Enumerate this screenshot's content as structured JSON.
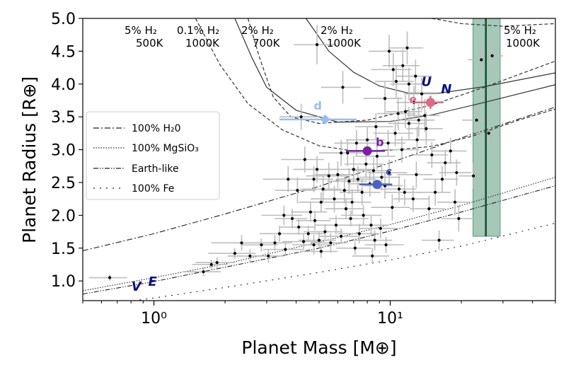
{
  "chart_data": {
    "type": "scatter",
    "xscale": "log",
    "xlim": [
      0.5,
      50
    ],
    "ylim": [
      0.7,
      5.0
    ],
    "xlabel": "Planet Mass [M⊕]",
    "ylabel": "Planet Radius [R⊕]",
    "x_ticks": [
      {
        "v": 1,
        "label": "10⁰"
      },
      {
        "v": 10,
        "label": "10¹"
      }
    ],
    "y_ticks": [
      1.0,
      1.5,
      2.0,
      2.5,
      3.0,
      3.5,
      4.0,
      4.5,
      5.0
    ],
    "y_tick_labels": [
      "1.0",
      "1.5",
      "2.0",
      "2.5",
      "3.0",
      "3.5",
      "4.0",
      "4.5",
      "5.0"
    ],
    "grid": false,
    "legend_position": "center-left",
    "legend": [
      {
        "label": "100% H₂0",
        "dash": "8 3 2 3"
      },
      {
        "label": "100% MgSiO₃",
        "dash": "1.5 2"
      },
      {
        "label": "Earth-like",
        "dash": "7 2 1.5 2 1.5 2"
      },
      {
        "label": "100% Fe",
        "dash": "2 7"
      }
    ],
    "composition_curves": [
      {
        "name": "100% H20",
        "dash": "8 3 2 3",
        "points": [
          [
            0.5,
            1.46
          ],
          [
            1,
            1.72
          ],
          [
            2,
            2.02
          ],
          [
            5,
            2.44
          ],
          [
            10,
            2.8
          ],
          [
            20,
            3.18
          ],
          [
            50,
            3.65
          ]
        ]
      },
      {
        "name": "100% MgSiO3",
        "dash": "1.5 2",
        "points": [
          [
            0.5,
            0.85
          ],
          [
            1,
            1.05
          ],
          [
            2,
            1.26
          ],
          [
            5,
            1.59
          ],
          [
            10,
            1.86
          ],
          [
            20,
            2.15
          ],
          [
            50,
            2.58
          ]
        ]
      },
      {
        "name": "Earth-like",
        "dash": "7 2 1.5 2 1.5 2",
        "points": [
          [
            0.5,
            0.8
          ],
          [
            1,
            0.99
          ],
          [
            2,
            1.21
          ],
          [
            5,
            1.5
          ],
          [
            10,
            1.76
          ],
          [
            20,
            2.05
          ],
          [
            50,
            2.45
          ]
        ]
      },
      {
        "name": "100% Fe",
        "dash": "2 7",
        "points": [
          [
            0.5,
            0.6
          ],
          [
            1,
            0.74
          ],
          [
            2,
            0.9
          ],
          [
            5,
            1.13
          ],
          [
            10,
            1.32
          ],
          [
            20,
            1.53
          ],
          [
            50,
            1.88
          ]
        ]
      }
    ],
    "envelope_curves": [
      {
        "name": "5% H2 500K",
        "dash": "5 3",
        "points": [
          [
            1.5,
            5.0
          ],
          [
            1.9,
            4.3
          ],
          [
            2.5,
            3.7
          ],
          [
            3.5,
            3.3
          ],
          [
            5,
            3.06
          ],
          [
            7,
            2.98
          ],
          [
            10,
            2.99
          ],
          [
            15,
            3.05
          ],
          [
            22,
            3.2
          ],
          [
            35,
            3.45
          ],
          [
            50,
            3.62
          ]
        ]
      },
      {
        "name": "0.1% H2 1000K",
        "dash": "5 3",
        "points": [
          [
            2.5,
            5.0
          ],
          [
            2.8,
            4.4
          ],
          [
            3.2,
            3.8
          ],
          [
            3.8,
            3.5
          ],
          [
            5,
            3.4
          ],
          [
            8,
            3.45
          ],
          [
            15,
            3.68
          ],
          [
            25,
            3.95
          ],
          [
            50,
            4.35
          ]
        ]
      },
      {
        "name": "2% H2 700K",
        "dash": "",
        "points": [
          [
            2.2,
            5.0
          ],
          [
            2.6,
            4.4
          ],
          [
            3.0,
            3.95
          ],
          [
            4.0,
            3.6
          ],
          [
            6,
            3.42
          ],
          [
            10,
            3.43
          ],
          [
            15,
            3.53
          ],
          [
            25,
            3.72
          ],
          [
            50,
            3.99
          ]
        ]
      },
      {
        "name": "2% H2 1000K",
        "dash": "",
        "points": [
          [
            4.4,
            5.0
          ],
          [
            5.5,
            4.5
          ],
          [
            7,
            4.18
          ],
          [
            9,
            3.97
          ],
          [
            12,
            3.86
          ],
          [
            16,
            3.86
          ],
          [
            25,
            3.96
          ],
          [
            50,
            4.17
          ]
        ]
      },
      {
        "name": "5% H2 1000K",
        "dash": "5 3",
        "points": [
          [
            15,
            5.0
          ],
          [
            20,
            4.92
          ],
          [
            30,
            4.88
          ],
          [
            50,
            4.92
          ]
        ]
      }
    ],
    "envelope_annotations": [
      {
        "line1": "5% H₂",
        "line2": "500K"
      },
      {
        "line1": "0.1% H₂",
        "line2": "1000K"
      },
      {
        "line1": "2% H₂",
        "line2": "700K"
      },
      {
        "line1": "2% H₂",
        "line2": "1000K"
      },
      {
        "line1": "5% H₂",
        "line2": "1000K"
      }
    ],
    "shaded_band": {
      "x_center": 25.4,
      "x_min": 22.4,
      "x_max": 29.2,
      "y_min": 1.68,
      "y_max": 5.0,
      "color": "#5b9a7e",
      "line_color": "#124d2c"
    },
    "highlighted_planets": [
      {
        "label": "b",
        "mass": 8.0,
        "mass_err": 1.5,
        "radius": 2.98,
        "radius_err": 0.05,
        "color": "#7b1fa2"
      },
      {
        "label": "c",
        "mass": 8.8,
        "mass_err": 1.4,
        "radius": 2.47,
        "radius_err": 0.05,
        "color": "#4a62c8"
      },
      {
        "label": "d",
        "mass": 5.3,
        "mass_err": 1.9,
        "radius": 3.46,
        "radius_err": 0.06,
        "color": "#9bbbef"
      },
      {
        "label": "e",
        "mass": 14.8,
        "mass_err": 2.0,
        "radius": 3.72,
        "radius_err": 0.1,
        "color": "#d96b8a"
      }
    ],
    "solar_system": [
      {
        "label": "V",
        "mass": 0.82,
        "radius": 0.95
      },
      {
        "label": "E",
        "mass": 1.0,
        "radius": 1.0
      },
      {
        "label": "U",
        "mass": 14.5,
        "radius": 3.97
      },
      {
        "label": "N",
        "mass": 17.1,
        "radius": 3.86
      }
    ],
    "exoplanets": [
      [
        0.65,
        1.05,
        0.12,
        0.05
      ],
      [
        1.75,
        1.25,
        0.3,
        0.07
      ],
      [
        1.62,
        1.14,
        0.3,
        0.07
      ],
      [
        1.85,
        1.28,
        0.35,
        0.08
      ],
      [
        2.2,
        1.42,
        0.5,
        0.08
      ],
      [
        2.55,
        1.38,
        0.5,
        0.1
      ],
      [
        2.35,
        1.58,
        0.6,
        0.12
      ],
      [
        2.85,
        1.55,
        0.5,
        0.1
      ],
      [
        3.05,
        1.38,
        0.5,
        0.1
      ],
      [
        3.25,
        1.58,
        0.6,
        0.12
      ],
      [
        3.4,
        1.72,
        0.6,
        0.12
      ],
      [
        3.6,
        1.48,
        0.7,
        0.1
      ],
      [
        3.85,
        1.95,
        0.6,
        0.15
      ],
      [
        3.55,
        2.0,
        0.7,
        0.15
      ],
      [
        4.1,
        1.82,
        0.7,
        0.12
      ],
      [
        4.3,
        1.6,
        0.8,
        0.12
      ],
      [
        4.5,
        1.72,
        0.8,
        0.12
      ],
      [
        4.6,
        2.05,
        0.8,
        0.15
      ],
      [
        4.75,
        1.55,
        0.9,
        0.15
      ],
      [
        4.8,
        1.92,
        0.8,
        0.15
      ],
      [
        5.0,
        1.62,
        0.9,
        0.12
      ],
      [
        5.1,
        2.2,
        1.0,
        0.15
      ],
      [
        5.3,
        1.75,
        1.0,
        0.12
      ],
      [
        5.6,
        1.58,
        1.0,
        0.15
      ],
      [
        5.9,
        1.85,
        1.1,
        0.15
      ],
      [
        6.2,
        1.68,
        1.2,
        0.12
      ],
      [
        6.5,
        2.1,
        1.2,
        0.15
      ],
      [
        6.8,
        1.95,
        1.3,
        0.12
      ],
      [
        7.1,
        1.5,
        1.2,
        0.1
      ],
      [
        7.4,
        1.72,
        1.4,
        0.15
      ],
      [
        7.7,
        2.0,
        1.5,
        0.15
      ],
      [
        8.3,
        1.85,
        1.6,
        0.15
      ],
      [
        8.6,
        1.62,
        1.6,
        0.15
      ],
      [
        9.1,
        1.8,
        1.7,
        0.15
      ],
      [
        9.6,
        1.55,
        1.8,
        0.12
      ],
      [
        3.7,
        2.55,
        0.8,
        0.2
      ],
      [
        4.05,
        2.38,
        0.8,
        0.2
      ],
      [
        4.35,
        2.85,
        0.9,
        0.2
      ],
      [
        4.75,
        2.55,
        1.0,
        0.2
      ],
      [
        4.9,
        2.7,
        1.0,
        0.2
      ],
      [
        5.2,
        2.4,
        1.0,
        0.2
      ],
      [
        5.5,
        2.6,
        1.1,
        0.2
      ],
      [
        5.8,
        2.25,
        1.2,
        0.2
      ],
      [
        6.0,
        2.62,
        1.2,
        0.2
      ],
      [
        6.2,
        2.95,
        1.2,
        0.2
      ],
      [
        6.4,
        2.38,
        1.3,
        0.2
      ],
      [
        6.7,
        2.52,
        1.3,
        0.2
      ],
      [
        6.9,
        2.2,
        1.4,
        0.2
      ],
      [
        7.0,
        2.7,
        1.4,
        0.2
      ],
      [
        7.3,
        2.55,
        1.4,
        0.2
      ],
      [
        7.6,
        2.35,
        1.5,
        0.2
      ],
      [
        7.9,
        2.78,
        1.5,
        0.2
      ],
      [
        8.2,
        2.48,
        1.6,
        0.2
      ],
      [
        8.5,
        2.68,
        1.6,
        0.2
      ],
      [
        8.8,
        2.9,
        1.7,
        0.2
      ],
      [
        9.2,
        2.58,
        1.8,
        0.2
      ],
      [
        9.5,
        2.45,
        1.8,
        0.2
      ],
      [
        9.9,
        2.65,
        1.9,
        0.2
      ],
      [
        6.6,
        2.95,
        1.3,
        0.2
      ],
      [
        7.2,
        3.1,
        1.4,
        0.2
      ],
      [
        8.0,
        3.15,
        1.5,
        0.2
      ],
      [
        8.7,
        3.35,
        1.6,
        0.2
      ],
      [
        9.8,
        3.1,
        1.8,
        0.2
      ],
      [
        10.5,
        3.25,
        2.0,
        0.2
      ],
      [
        11.2,
        3.0,
        2.0,
        0.2
      ],
      [
        12.0,
        3.4,
        2.2,
        0.25
      ],
      [
        13.0,
        3.15,
        2.5,
        0.2
      ],
      [
        14.2,
        3.32,
        2.5,
        0.25
      ],
      [
        15.0,
        2.92,
        2.5,
        0.2
      ],
      [
        10.8,
        3.55,
        2.0,
        0.25
      ],
      [
        11.6,
        3.58,
        2.0,
        0.25
      ],
      [
        12.6,
        3.72,
        2.0,
        0.25
      ],
      [
        13.2,
        3.45,
        2.2,
        0.25
      ],
      [
        14.0,
        3.52,
        2.2,
        0.25
      ],
      [
        9.5,
        3.78,
        1.8,
        0.25
      ],
      [
        10.6,
        4.04,
        2.0,
        0.25
      ],
      [
        11.3,
        4.28,
        2.0,
        0.25
      ],
      [
        12.0,
        4.0,
        2.0,
        0.25
      ],
      [
        12.8,
        4.12,
        2.2,
        0.25
      ],
      [
        13.6,
        3.85,
        2.2,
        0.25
      ],
      [
        11.8,
        4.55,
        2.0,
        0.25
      ],
      [
        10.3,
        4.22,
        2.0,
        0.25
      ],
      [
        9.9,
        4.5,
        1.8,
        0.25
      ],
      [
        4.2,
        3.5,
        0.8,
        0.2
      ],
      [
        4.9,
        4.6,
        1.0,
        0.3
      ],
      [
        6.3,
        3.95,
        1.2,
        0.25
      ],
      [
        18.0,
        2.98,
        3.0,
        0.2
      ],
      [
        18.8,
        2.2,
        3.0,
        0.2
      ],
      [
        19.5,
        1.95,
        3.0,
        0.2
      ],
      [
        15.5,
        2.35,
        2.5,
        0.2
      ],
      [
        16.1,
        1.62,
        2.5,
        0.15
      ],
      [
        8.4,
        1.38,
        1.5,
        0.12
      ],
      [
        5.1,
        1.45,
        0.9,
        0.1
      ],
      [
        10.2,
        2.12,
        1.9,
        0.2
      ],
      [
        10.9,
        2.4,
        2.0,
        0.2
      ],
      [
        11.5,
        2.35,
        2.0,
        0.2
      ],
      [
        12.5,
        2.25,
        2.2,
        0.2
      ],
      [
        12.9,
        2.62,
        2.2,
        0.2
      ],
      [
        14.6,
        2.1,
        2.5,
        0.2
      ],
      [
        16.6,
        2.55,
        2.8,
        0.2
      ],
      [
        17.1,
        2.8,
        2.8,
        0.2
      ],
      [
        19.1,
        2.65,
        3.0,
        0.2
      ],
      [
        22.5,
        2.6,
        3.0,
        0.2
      ],
      [
        24.3,
        4.37,
        3.0,
        0.25
      ],
      [
        27.0,
        4.43,
        3.0,
        0.25
      ],
      [
        26.1,
        3.25,
        3.0,
        0.25
      ],
      [
        23.2,
        3.45,
        3.0,
        0.2
      ]
    ]
  }
}
